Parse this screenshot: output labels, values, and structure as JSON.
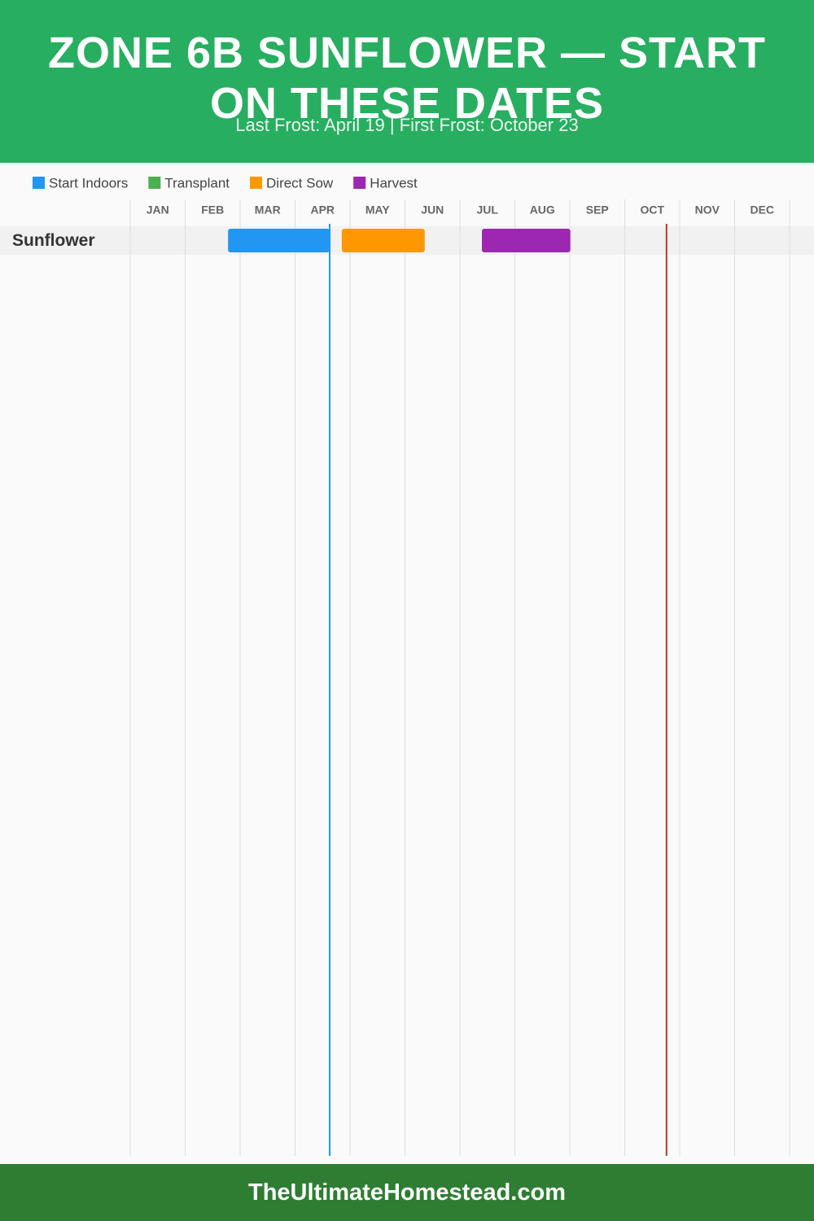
{
  "chart_data": {
    "type": "gantt",
    "title": "ZONE 6B SUNFLOWER — START ON THESE DATES",
    "subtitle": "Last Frost: April 19 | First Frost: October 23",
    "categories": [
      "JAN",
      "FEB",
      "MAR",
      "APR",
      "MAY",
      "JUN",
      "JUL",
      "AUG",
      "SEP",
      "OCT",
      "NOV",
      "DEC"
    ],
    "xlim": [
      0,
      12
    ],
    "xticks": [
      0,
      1,
      2,
      3,
      4,
      5,
      6,
      7,
      8,
      9,
      10,
      11,
      12
    ],
    "grid": true,
    "rows": [
      "Sunflower"
    ],
    "series": [
      {
        "name": "Start Indoors",
        "color": "#2196f3",
        "ranges": [
          [
            1.78,
            3.63
          ]
        ]
      },
      {
        "name": "Transplant",
        "color": "#4caf50",
        "ranges": []
      },
      {
        "name": "Direct Sow",
        "color": "#ff9800",
        "ranges": [
          [
            3.85,
            5.36
          ]
        ]
      },
      {
        "name": "Harvest",
        "color": "#9c27b0",
        "ranges": [
          [
            6.4,
            8.01
          ]
        ]
      }
    ],
    "markers": [
      {
        "value": 3.63,
        "color": "#2196f3"
      },
      {
        "value": 9.76,
        "color": "#b03a2e"
      }
    ],
    "footer": "TheUltimateHomestead.com"
  }
}
